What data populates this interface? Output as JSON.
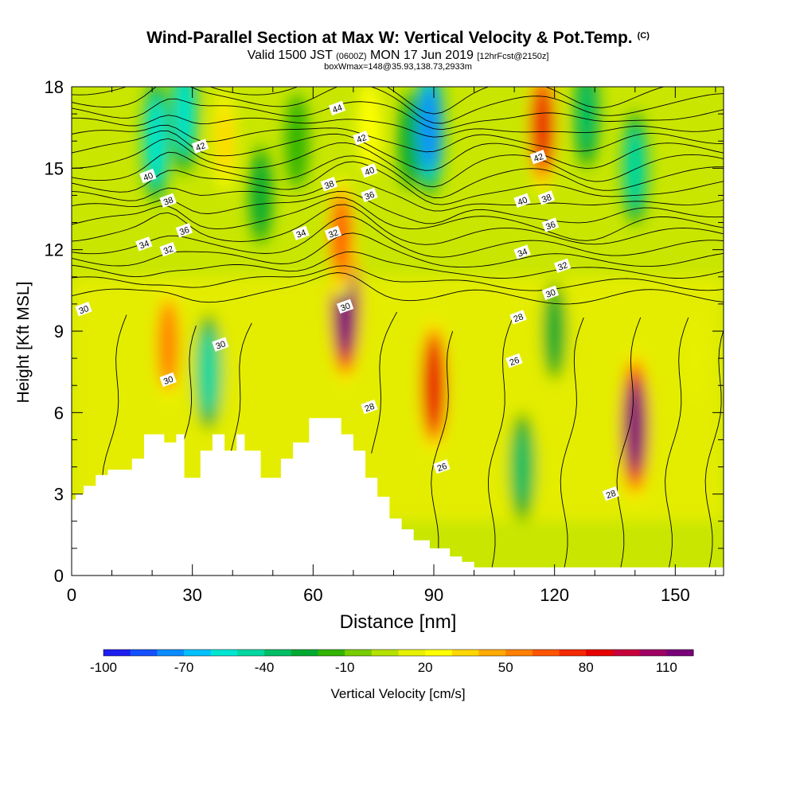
{
  "title": {
    "main": "Wind-Parallel Section at Max W: Vertical Velocity & Pot.Temp.",
    "tag": "(C)",
    "valid_prefix": "Valid 1500 JST",
    "valid_z": "(0600Z)",
    "valid_date": "MON 17 Jun 2019",
    "fcst": "[12hrFcst@2150z]",
    "box": "boxWmax=148@35.93,138.73,2933m"
  },
  "chart_data": {
    "type": "heatmap",
    "xlabel": "Distance [nm]",
    "ylabel": "Height [Kft MSL]",
    "xlim": [
      0,
      162
    ],
    "ylim": [
      0,
      18
    ],
    "x_ticks": [
      0,
      30,
      60,
      90,
      120,
      150
    ],
    "y_ticks": [
      0,
      3,
      6,
      9,
      12,
      15,
      18
    ],
    "colorbar": {
      "label": "Vertical Velocity [cm/s]",
      "tick_labels": [
        "-100",
        "-70",
        "-40",
        "-10",
        "20",
        "50",
        "80",
        "110"
      ],
      "levels": [
        -100,
        -90,
        -80,
        -70,
        -60,
        -50,
        -40,
        -30,
        -20,
        -10,
        0,
        10,
        20,
        30,
        40,
        50,
        60,
        70,
        80,
        90,
        100,
        110,
        120
      ],
      "colors": [
        "#1e1ef0",
        "#1450ff",
        "#0a8cff",
        "#00c0ff",
        "#00e6d2",
        "#00d8a0",
        "#00be64",
        "#00aa32",
        "#32b400",
        "#78cd00",
        "#b4e100",
        "#e6f000",
        "#ffff00",
        "#ffd700",
        "#ffaa00",
        "#ff8000",
        "#ff5500",
        "#f52800",
        "#e60000",
        "#c8003c",
        "#a00064",
        "#780078"
      ]
    },
    "velocity_features": [
      {
        "x": 24,
        "y": 8.5,
        "w": 55
      },
      {
        "x": 21,
        "y": 16,
        "w": -55
      },
      {
        "x": 28,
        "y": 17,
        "w": -50
      },
      {
        "x": 34,
        "y": 7.5,
        "w": -45
      },
      {
        "x": 38,
        "y": 16,
        "w": 30
      },
      {
        "x": 47,
        "y": 14,
        "w": -20
      },
      {
        "x": 56,
        "y": 16,
        "w": -15
      },
      {
        "x": 68,
        "y": 10,
        "w": 120
      },
      {
        "x": 67,
        "y": 12.5,
        "w": 60
      },
      {
        "x": 74,
        "y": 16.5,
        "w": 25
      },
      {
        "x": 84,
        "y": 16,
        "w": -20
      },
      {
        "x": 89,
        "y": 16.5,
        "w": -75
      },
      {
        "x": 90,
        "y": 7,
        "w": 85
      },
      {
        "x": 112,
        "y": 4,
        "w": -35
      },
      {
        "x": 117,
        "y": 16.5,
        "w": 80
      },
      {
        "x": 120,
        "y": 9,
        "w": -20
      },
      {
        "x": 128,
        "y": 17,
        "w": -35
      },
      {
        "x": 140,
        "y": 15,
        "w": -40
      },
      {
        "x": 140,
        "y": 5.5,
        "w": 110
      },
      {
        "x": 155,
        "y": 8,
        "w": 10
      }
    ],
    "theta_contour_labels": [
      {
        "v": "44",
        "x": 66,
        "y": 17.2
      },
      {
        "v": "42",
        "x": 32,
        "y": 15.8
      },
      {
        "v": "42",
        "x": 72,
        "y": 16.1
      },
      {
        "v": "42",
        "x": 116,
        "y": 15.4
      },
      {
        "v": "40",
        "x": 19,
        "y": 14.7
      },
      {
        "v": "40",
        "x": 74,
        "y": 14.9
      },
      {
        "v": "40",
        "x": 112,
        "y": 13.8
      },
      {
        "v": "38",
        "x": 24,
        "y": 13.8
      },
      {
        "v": "38",
        "x": 64,
        "y": 14.4
      },
      {
        "v": "38",
        "x": 118,
        "y": 13.9
      },
      {
        "v": "36",
        "x": 28,
        "y": 12.7
      },
      {
        "v": "36",
        "x": 74,
        "y": 14.0
      },
      {
        "v": "36",
        "x": 119,
        "y": 12.9
      },
      {
        "v": "34",
        "x": 18,
        "y": 12.2
      },
      {
        "v": "34",
        "x": 57,
        "y": 12.6
      },
      {
        "v": "34",
        "x": 112,
        "y": 11.9
      },
      {
        "v": "32",
        "x": 24,
        "y": 12.0
      },
      {
        "v": "32",
        "x": 65,
        "y": 12.6
      },
      {
        "v": "32",
        "x": 122,
        "y": 11.4
      },
      {
        "v": "30",
        "x": 3,
        "y": 9.8
      },
      {
        "v": "30",
        "x": 68,
        "y": 9.9
      },
      {
        "v": "30",
        "x": 37,
        "y": 8.5
      },
      {
        "v": "30",
        "x": 24,
        "y": 7.2
      },
      {
        "v": "30",
        "x": 119,
        "y": 10.4
      },
      {
        "v": "28",
        "x": 74,
        "y": 6.2
      },
      {
        "v": "28",
        "x": 111,
        "y": 9.5
      },
      {
        "v": "28",
        "x": 134,
        "y": 3.0
      },
      {
        "v": "26",
        "x": 92,
        "y": 4.0
      },
      {
        "v": "26",
        "x": 110,
        "y": 7.9
      }
    ],
    "terrain": [
      [
        0,
        2.8
      ],
      [
        1,
        2.8
      ],
      [
        1,
        3.0
      ],
      [
        3,
        3.0
      ],
      [
        3,
        3.3
      ],
      [
        6,
        3.3
      ],
      [
        6,
        3.7
      ],
      [
        9,
        3.7
      ],
      [
        9,
        3.9
      ],
      [
        15,
        3.9
      ],
      [
        15,
        4.3
      ],
      [
        18,
        4.3
      ],
      [
        18,
        5.2
      ],
      [
        23,
        5.2
      ],
      [
        23,
        4.9
      ],
      [
        26,
        4.9
      ],
      [
        26,
        5.2
      ],
      [
        28,
        5.2
      ],
      [
        28,
        3.6
      ],
      [
        32,
        3.6
      ],
      [
        32,
        4.6
      ],
      [
        35,
        4.6
      ],
      [
        35,
        5.2
      ],
      [
        38,
        5.2
      ],
      [
        38,
        4.6
      ],
      [
        41,
        4.6
      ],
      [
        41,
        5.2
      ],
      [
        43,
        5.2
      ],
      [
        43,
        4.6
      ],
      [
        47,
        4.6
      ],
      [
        47,
        3.6
      ],
      [
        52,
        3.6
      ],
      [
        52,
        4.3
      ],
      [
        55,
        4.3
      ],
      [
        55,
        4.9
      ],
      [
        59,
        4.9
      ],
      [
        59,
        5.8
      ],
      [
        67,
        5.8
      ],
      [
        67,
        5.2
      ],
      [
        70,
        5.2
      ],
      [
        70,
        4.6
      ],
      [
        73,
        4.6
      ],
      [
        73,
        3.6
      ],
      [
        76,
        3.6
      ],
      [
        76,
        2.9
      ],
      [
        79,
        2.9
      ],
      [
        79,
        2.1
      ],
      [
        82,
        2.1
      ],
      [
        82,
        1.7
      ],
      [
        85,
        1.7
      ],
      [
        85,
        1.3
      ],
      [
        89,
        1.3
      ],
      [
        89,
        1.0
      ],
      [
        94,
        1.0
      ],
      [
        94,
        0.7
      ],
      [
        97,
        0.7
      ],
      [
        97,
        0.5
      ],
      [
        100,
        0.5
      ],
      [
        100,
        0.3
      ],
      [
        162,
        0.3
      ],
      [
        162,
        0
      ],
      [
        0,
        0
      ]
    ]
  }
}
